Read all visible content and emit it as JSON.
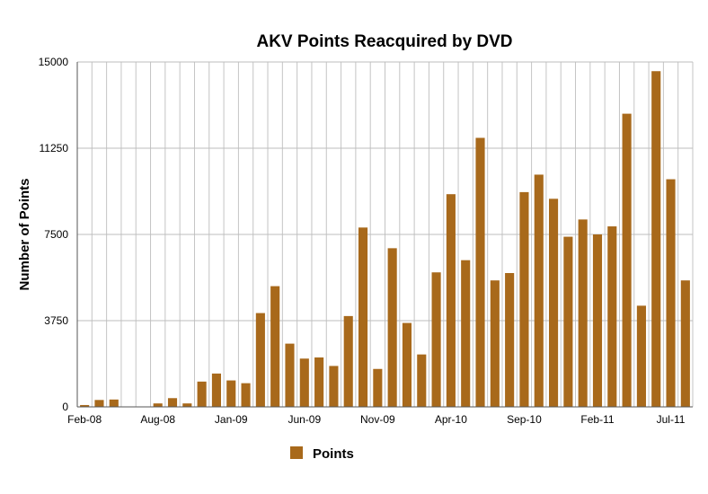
{
  "chart_data": {
    "type": "bar",
    "title": "AKV Points Reacquired by DVD",
    "xlabel": "",
    "ylabel": "Number of Points",
    "ylim": [
      0,
      15000
    ],
    "y_ticks": [
      "0",
      "3750",
      "7500",
      "11250",
      "15000"
    ],
    "x_tick_labels": [
      "Feb-08",
      "Aug-08",
      "Jan-09",
      "Jun-09",
      "Nov-09",
      "Apr-10",
      "Sep-10",
      "Feb-11",
      "Jul-11"
    ],
    "grid": true,
    "legend_position": "bottom",
    "categories": [
      "Feb-08",
      "Mar-08",
      "Apr-08",
      "May-08",
      "Jun-08",
      "Jul-08",
      "Aug-08",
      "Sep-08",
      "Oct-08",
      "Nov-08",
      "Dec-08",
      "Jan-09",
      "Feb-09",
      "Mar-09",
      "Apr-09",
      "May-09",
      "Jun-09",
      "Jul-09",
      "Aug-09",
      "Sep-09",
      "Oct-09",
      "Nov-09",
      "Dec-09",
      "Jan-10",
      "Feb-10",
      "Mar-10",
      "Apr-10",
      "May-10",
      "Jun-10",
      "Jul-10",
      "Aug-10",
      "Sep-10",
      "Oct-10",
      "Nov-10",
      "Dec-10",
      "Jan-11",
      "Feb-11",
      "Mar-11",
      "Apr-11",
      "May-11",
      "Jun-11",
      "Jul-11"
    ],
    "series": [
      {
        "name": "Points",
        "color": "#a8691b",
        "values": [
          80,
          300,
          320,
          0,
          0,
          150,
          380,
          150,
          1100,
          1450,
          1150,
          1030,
          4080,
          5250,
          2750,
          2100,
          2150,
          1780,
          3950,
          7800,
          1650,
          6900,
          3650,
          2280,
          5850,
          9250,
          6380,
          11700,
          5500,
          5820,
          9340,
          10100,
          9050,
          7400,
          8150,
          7500,
          7850,
          12750,
          4400,
          14600,
          9900,
          5500
        ]
      }
    ]
  }
}
